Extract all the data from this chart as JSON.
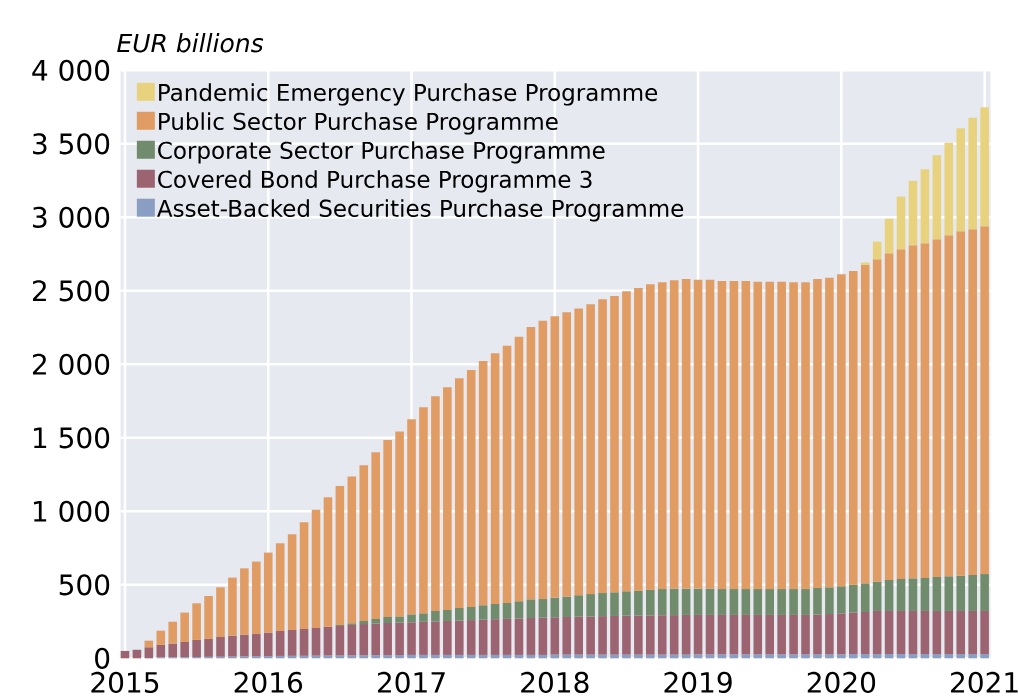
{
  "chart_data": {
    "type": "bar",
    "stacked": true,
    "ylabel": "EUR billions",
    "x": [
      "2015-01",
      "2015-02",
      "2015-03",
      "2015-04",
      "2015-05",
      "2015-06",
      "2015-07",
      "2015-08",
      "2015-09",
      "2015-10",
      "2015-11",
      "2015-12",
      "2016-01",
      "2016-02",
      "2016-03",
      "2016-04",
      "2016-05",
      "2016-06",
      "2016-07",
      "2016-08",
      "2016-09",
      "2016-10",
      "2016-11",
      "2016-12",
      "2017-01",
      "2017-02",
      "2017-03",
      "2017-04",
      "2017-05",
      "2017-06",
      "2017-07",
      "2017-08",
      "2017-09",
      "2017-10",
      "2017-11",
      "2017-12",
      "2018-01",
      "2018-02",
      "2018-03",
      "2018-04",
      "2018-05",
      "2018-06",
      "2018-07",
      "2018-08",
      "2018-09",
      "2018-10",
      "2018-11",
      "2018-12",
      "2019-01",
      "2019-02",
      "2019-03",
      "2019-04",
      "2019-05",
      "2019-06",
      "2019-07",
      "2019-08",
      "2019-09",
      "2019-10",
      "2019-11",
      "2019-12",
      "2020-01",
      "2020-02",
      "2020-03",
      "2020-04",
      "2020-05",
      "2020-06",
      "2020-07",
      "2020-08",
      "2020-09",
      "2020-10",
      "2020-11",
      "2020-12",
      "2021-01"
    ],
    "series": [
      {
        "name": "Asset-Backed Securities Purchase Programme",
        "color": "#8a9dc3",
        "values": [
          null,
          null,
          null,
          6,
          7,
          8,
          9,
          10,
          11,
          12,
          13,
          14,
          15,
          16,
          17,
          17,
          18,
          19,
          19,
          20,
          20,
          21,
          21,
          22,
          23,
          23,
          23,
          23,
          23,
          23,
          23,
          23,
          23,
          23,
          23,
          23,
          25,
          25,
          25,
          25,
          25,
          25,
          25,
          25,
          25,
          25,
          25,
          25,
          27,
          27,
          27,
          27,
          27,
          27,
          27,
          27,
          27,
          27,
          27,
          27,
          27,
          29,
          29,
          29,
          29,
          29,
          29,
          29,
          29,
          29,
          29,
          29,
          29
        ]
      },
      {
        "name": "Covered Bond Purchase Programme 3",
        "color": "#9b6470",
        "values": [
          50,
          58,
          75,
          85,
          93,
          103,
          116,
          122,
          134,
          142,
          148,
          151,
          160,
          170,
          176,
          183,
          188,
          196,
          201,
          207,
          213,
          215,
          219,
          221,
          222,
          225,
          228,
          231,
          234,
          237,
          240,
          243,
          245,
          248,
          251,
          253,
          254,
          256,
          258,
          260,
          262,
          263,
          265,
          266,
          267,
          268,
          269,
          270,
          268,
          268,
          268,
          268,
          268,
          268,
          268,
          268,
          268,
          268,
          270,
          274,
          279,
          282,
          286,
          293,
          293,
          293,
          293,
          293,
          293,
          293,
          293,
          293,
          293
        ]
      },
      {
        "name": "Corporate Sector Purchase Programme",
        "color": "#708c6c",
        "values": [
          null,
          null,
          null,
          null,
          null,
          null,
          null,
          null,
          null,
          null,
          null,
          null,
          null,
          null,
          null,
          null,
          null,
          null,
          7,
          11,
          21,
          32,
          41,
          42,
          54,
          58,
          71,
          75,
          85,
          89,
          98,
          104,
          108,
          117,
          127,
          127,
          134,
          139,
          146,
          152,
          157,
          161,
          166,
          169,
          175,
          178,
          180,
          179,
          179,
          179,
          176,
          176,
          176,
          176,
          176,
          176,
          176,
          176,
          182,
          182,
          184,
          190,
          195,
          200,
          211,
          218,
          222,
          225,
          231,
          236,
          240,
          245,
          251
        ]
      },
      {
        "name": "Public Sector Purchase Programme",
        "color": "#e09c63",
        "values": [
          null,
          null,
          45,
          97,
          149,
          200,
          249,
          292,
          338,
          395,
          451,
          493,
          544,
          596,
          651,
          725,
          805,
          880,
          945,
          998,
          1059,
          1133,
          1204,
          1257,
          1327,
          1401,
          1460,
          1515,
          1563,
          1612,
          1662,
          1705,
          1751,
          1800,
          1853,
          1894,
          1914,
          1934,
          1950,
          1971,
          1998,
          2016,
          2041,
          2059,
          2077,
          2087,
          2097,
          2106,
          2102,
          2102,
          2096,
          2096,
          2096,
          2091,
          2091,
          2091,
          2087,
          2087,
          2101,
          2106,
          2122,
          2134,
          2166,
          2192,
          2222,
          2242,
          2266,
          2276,
          2297,
          2320,
          2343,
          2351,
          2366
        ]
      },
      {
        "name": "Pandemic Emergency Purchase Programme",
        "color": "#e8d27e",
        "values": [
          null,
          null,
          null,
          null,
          null,
          null,
          null,
          null,
          null,
          null,
          null,
          null,
          null,
          null,
          null,
          null,
          null,
          null,
          null,
          null,
          null,
          null,
          null,
          null,
          null,
          null,
          null,
          null,
          null,
          null,
          null,
          null,
          null,
          null,
          null,
          null,
          null,
          null,
          null,
          null,
          null,
          null,
          null,
          null,
          null,
          null,
          null,
          null,
          null,
          null,
          null,
          null,
          null,
          null,
          null,
          null,
          null,
          null,
          null,
          null,
          null,
          null,
          16,
          121,
          235,
          359,
          438,
          504,
          572,
          630,
          700,
          760,
          809
        ]
      }
    ],
    "xlim": [
      "2014-12-20",
      "2021-01-16"
    ],
    "xticks": [
      {
        "value": "2015-01",
        "label": "2015"
      },
      {
        "value": "2016-01",
        "label": "2016"
      },
      {
        "value": "2017-01",
        "label": "2017"
      },
      {
        "value": "2018-01",
        "label": "2018"
      },
      {
        "value": "2019-01",
        "label": "2019"
      },
      {
        "value": "2020-01",
        "label": "2020"
      },
      {
        "value": "2021-01",
        "label": "2021"
      }
    ],
    "ylim": [
      0,
      4000
    ],
    "yticks": [
      0,
      500,
      {
        "value": 1000,
        "label": "1 000"
      },
      {
        "value": 1500,
        "label": "1 500"
      },
      {
        "value": 2000,
        "label": "2 000"
      },
      {
        "value": 2500,
        "label": "2 500"
      },
      {
        "value": 3000,
        "label": "3 000"
      },
      {
        "value": 3500,
        "label": "3 500"
      },
      {
        "value": 4000,
        "label": "4 000"
      }
    ],
    "grid": true,
    "legend": "top left"
  }
}
